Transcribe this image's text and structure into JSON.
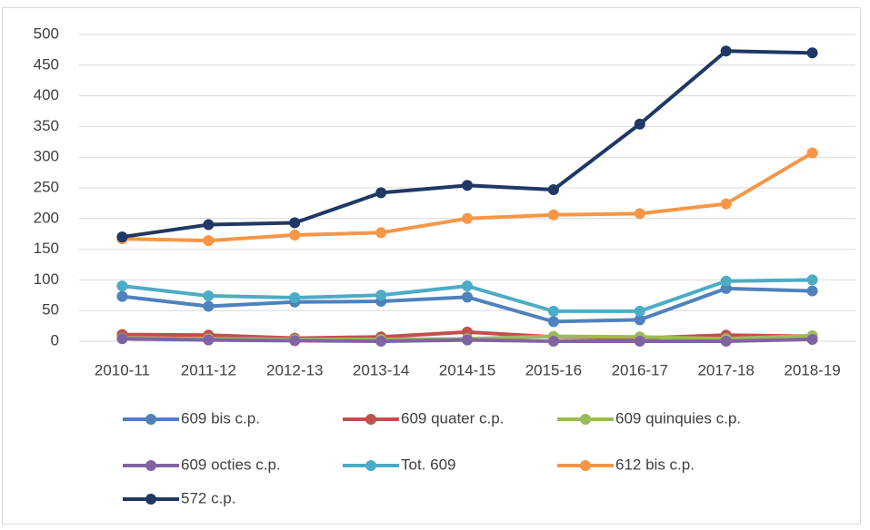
{
  "chart_data": {
    "type": "line",
    "categories": [
      "2010-11",
      "2011-12",
      "2012-13",
      "2013-14",
      "2014-15",
      "2015-16",
      "2016-17",
      "2017-18",
      "2018-19"
    ],
    "series": [
      {
        "name": "609 bis c.p.",
        "color": "#4f81bd",
        "values": [
          73,
          57,
          64,
          65,
          72,
          32,
          35,
          86,
          82
        ]
      },
      {
        "name": "609 quater c.p.",
        "color": "#c0504d",
        "values": [
          11,
          10,
          5,
          7,
          15,
          7,
          5,
          10,
          8
        ]
      },
      {
        "name": "609 quinquies c.p.",
        "color": "#9bbb59",
        "values": [
          5,
          4,
          3,
          3,
          4,
          8,
          7,
          4,
          9
        ]
      },
      {
        "name": "609 octies c.p.",
        "color": "#8064a2",
        "values": [
          4,
          2,
          1,
          0,
          2,
          0,
          0,
          0,
          3
        ]
      },
      {
        "name": "Tot. 609",
        "color": "#4bacc6",
        "values": [
          90,
          74,
          71,
          75,
          90,
          49,
          49,
          98,
          100
        ]
      },
      {
        "name": "612 bis c.p.",
        "color": "#f79646",
        "values": [
          167,
          164,
          173,
          177,
          200,
          206,
          208,
          224,
          307
        ]
      },
      {
        "name": "572 c.p.",
        "color": "#1f3864",
        "values": [
          170,
          190,
          193,
          242,
          254,
          247,
          354,
          473,
          470
        ]
      }
    ],
    "ylim": [
      0,
      500
    ],
    "yticks": [
      0,
      50,
      100,
      150,
      200,
      250,
      300,
      350,
      400,
      450,
      500
    ],
    "grid": true,
    "legend": "bottom"
  }
}
